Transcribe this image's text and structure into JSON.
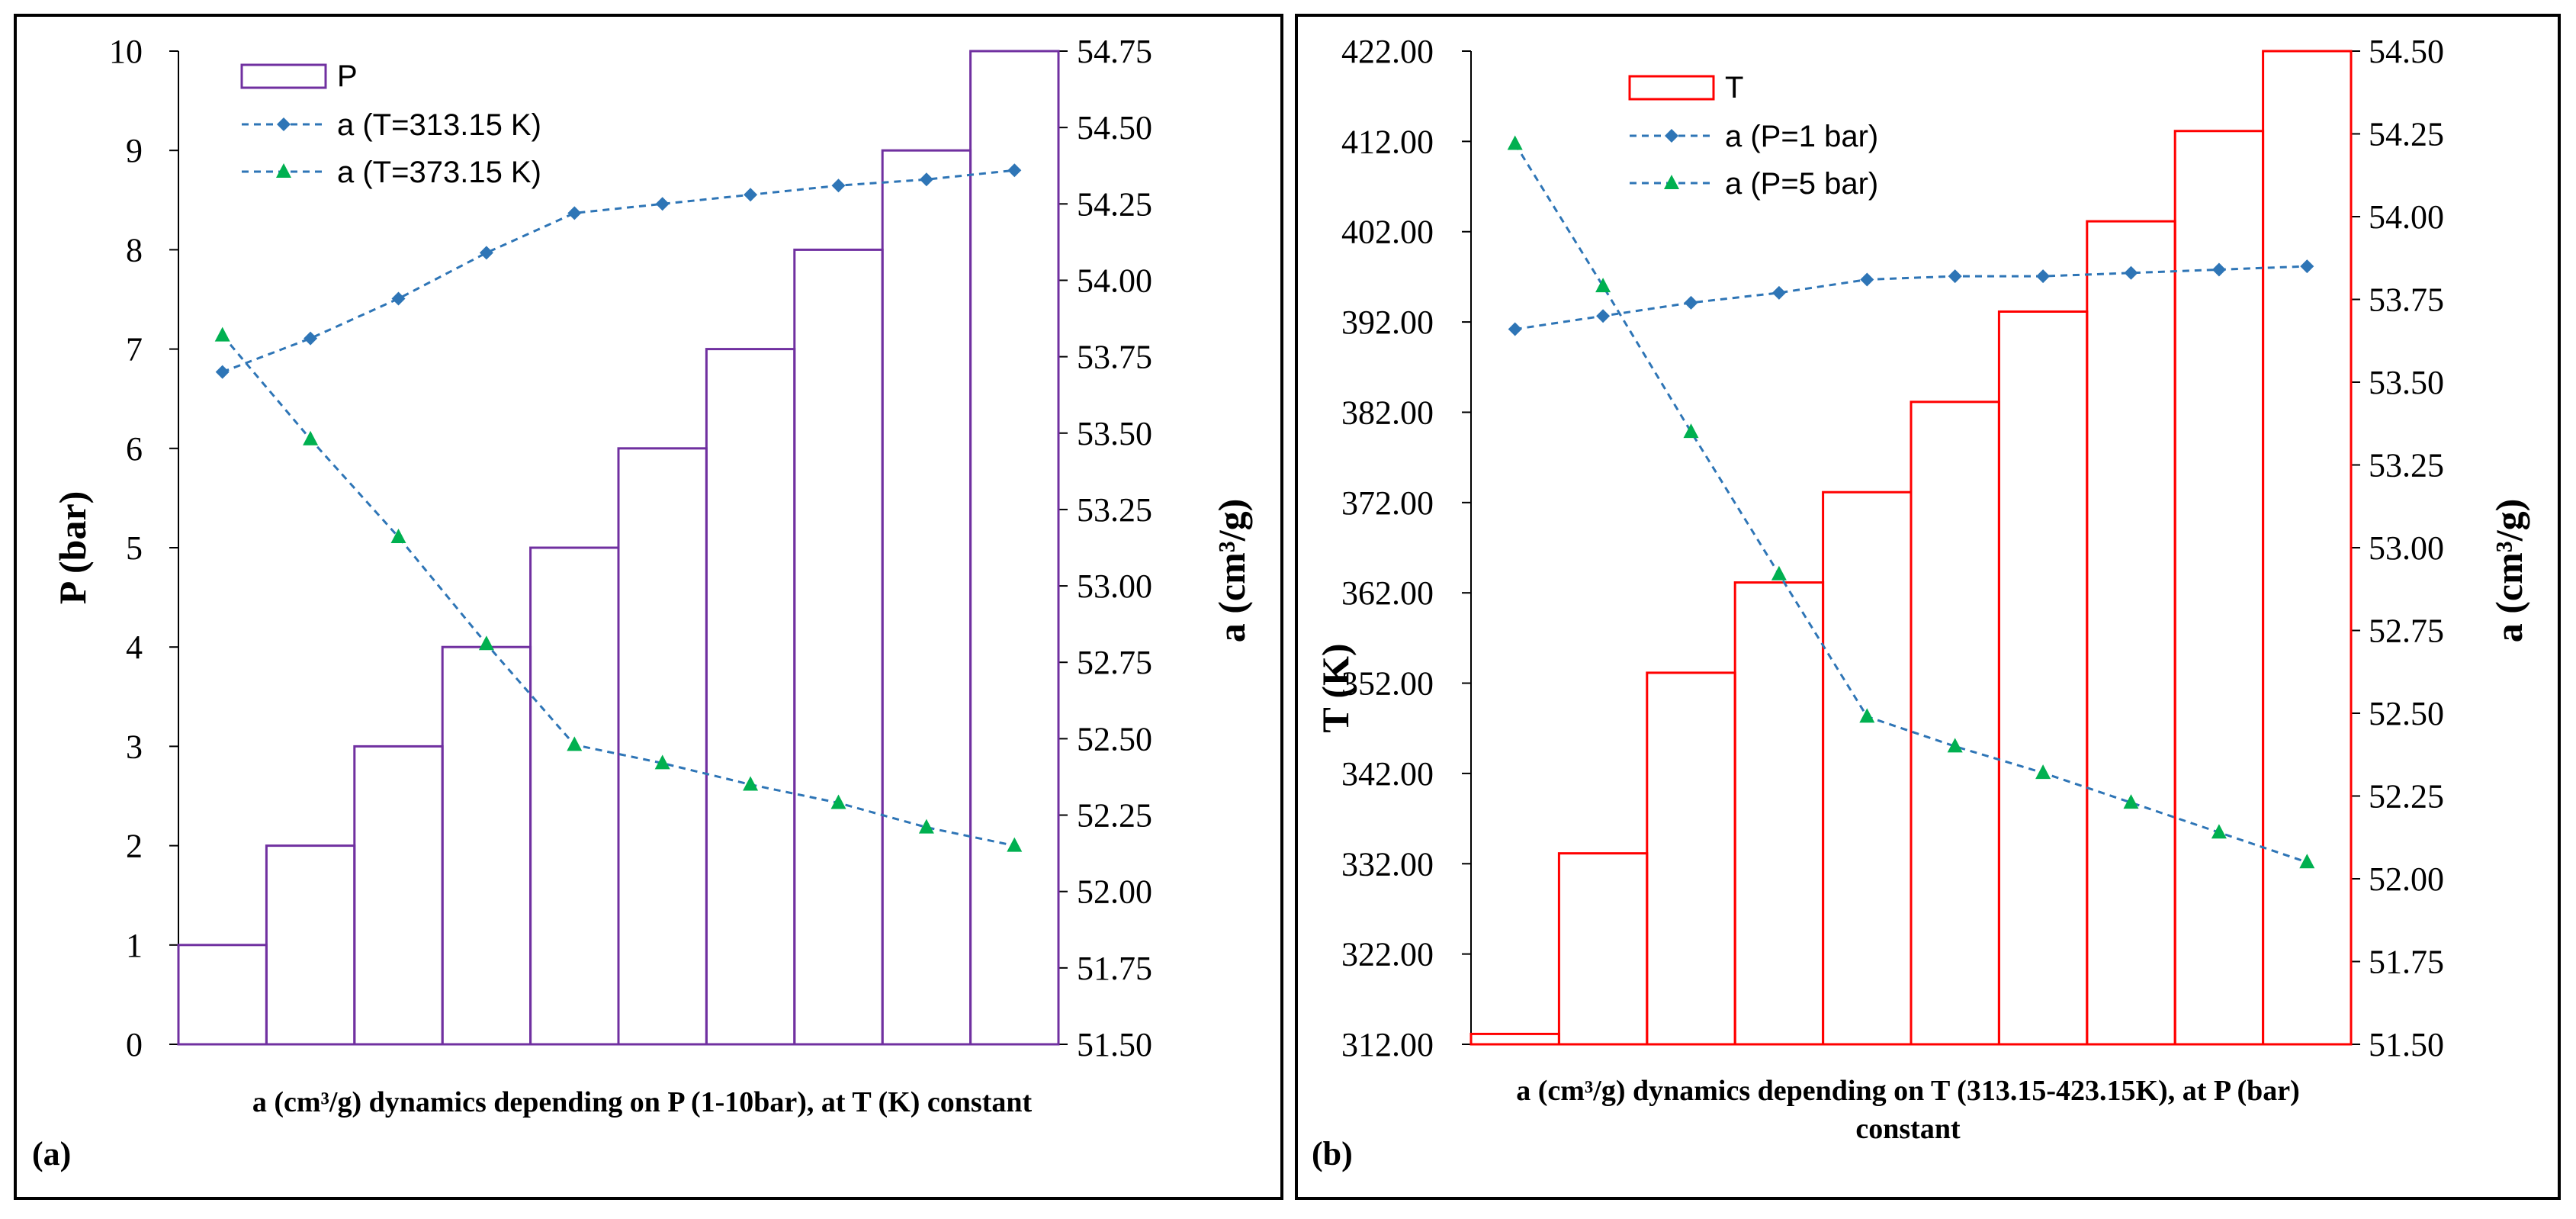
{
  "chart_data": [
    {
      "type": "bar",
      "panel_label": "(a)",
      "caption_lines": [
        "a (cm³/g) dynamics depending on P (1-10bar), at T (K) constant"
      ],
      "left_axis": {
        "title": "P (bar)",
        "min": 0,
        "max": 10,
        "step": 1,
        "ticks": [
          "0",
          "1",
          "2",
          "3",
          "4",
          "5",
          "6",
          "7",
          "8",
          "9",
          "10"
        ]
      },
      "right_axis": {
        "title": "a (cm³/g)",
        "min": 51.5,
        "max": 54.75,
        "ticks": [
          "51.50",
          "51.75",
          "52.00",
          "52.25",
          "52.50",
          "52.75",
          "53.00",
          "53.25",
          "53.50",
          "53.75",
          "54.00",
          "54.25",
          "54.50",
          "54.75"
        ]
      },
      "bars": {
        "name": "P",
        "color": "#7030a0",
        "values": [
          1,
          2,
          3,
          4,
          5,
          6,
          7,
          8,
          9,
          10
        ]
      },
      "series": [
        {
          "name": "a (T=313.15 K)",
          "color": "#2e75b6",
          "marker": "diamond",
          "values": [
            53.7,
            53.81,
            53.94,
            54.09,
            54.22,
            54.25,
            54.28,
            54.31,
            54.33,
            54.36
          ]
        },
        {
          "name": "a (T=373.15 K)",
          "color": "#00b050",
          "marker": "triangle",
          "values": [
            53.82,
            53.48,
            53.16,
            52.81,
            52.48,
            52.42,
            52.35,
            52.29,
            52.21,
            52.15
          ]
        }
      ]
    },
    {
      "type": "bar",
      "panel_label": "(b)",
      "caption_lines": [
        "a (cm³/g) dynamics depending on T (313.15-423.15K), at P (bar)",
        "constant"
      ],
      "left_axis": {
        "title": "T (K)",
        "min": 312,
        "max": 422,
        "ticks": [
          "312.00",
          "322.00",
          "332.00",
          "342.00",
          "352.00",
          "362.00",
          "372.00",
          "382.00",
          "392.00",
          "402.00",
          "412.00",
          "422.00"
        ]
      },
      "right_axis": {
        "title": "a (cm³/g)",
        "min": 51.5,
        "max": 54.5,
        "ticks": [
          "51.50",
          "51.75",
          "52.00",
          "52.25",
          "52.50",
          "52.75",
          "53.00",
          "53.25",
          "53.50",
          "53.75",
          "54.00",
          "54.25",
          "54.50"
        ]
      },
      "bars": {
        "name": "T",
        "color": "#ff0000",
        "values": [
          313.15,
          333.15,
          353.15,
          363.15,
          373.15,
          383.15,
          393.15,
          403.15,
          413.15,
          423.15
        ]
      },
      "series": [
        {
          "name": "a (P=1 bar)",
          "color": "#2e75b6",
          "marker": "diamond",
          "values": [
            53.66,
            53.7,
            53.74,
            53.77,
            53.81,
            53.82,
            53.82,
            53.83,
            53.84,
            53.85
          ]
        },
        {
          "name": "a (P=5 bar)",
          "color": "#00b050",
          "marker": "triangle",
          "values": [
            54.22,
            53.79,
            53.35,
            52.92,
            52.49,
            52.4,
            52.32,
            52.23,
            52.14,
            52.05
          ]
        }
      ]
    }
  ]
}
